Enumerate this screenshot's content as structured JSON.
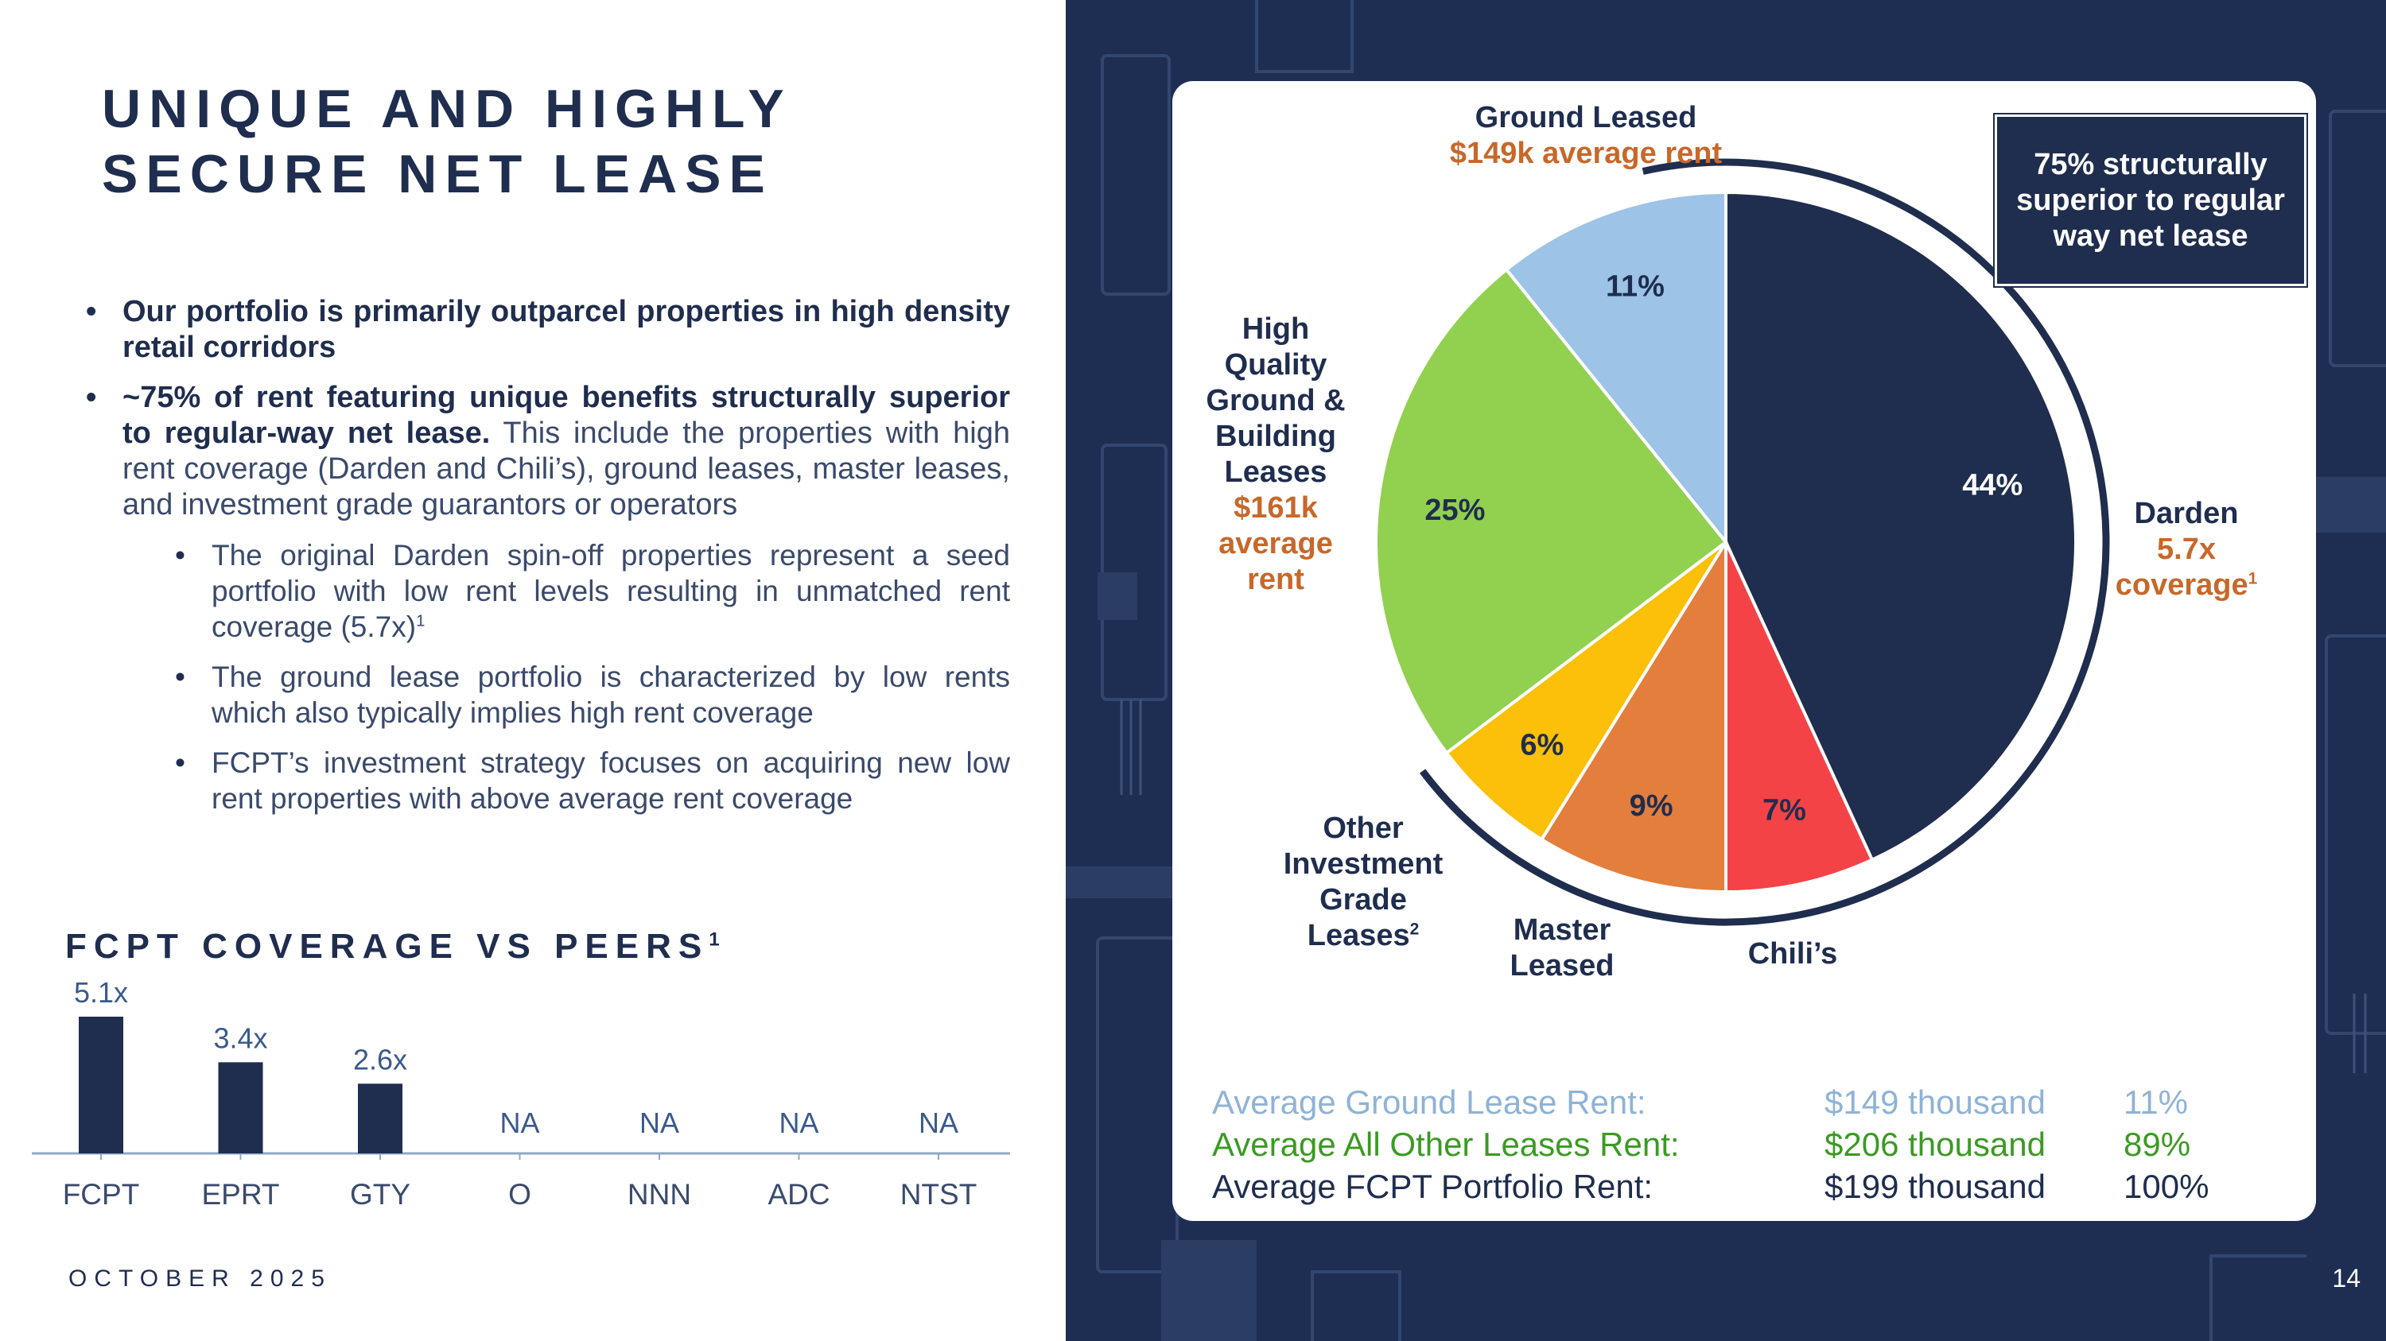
{
  "slide": {
    "title": "UNIQUE AND HIGHLY\nSECURE NET LEASE",
    "date": "OCTOBER 2025",
    "page_number": "14"
  },
  "bullets": [
    {
      "bold": "Our portfolio is primarily outparcel properties in high density retail corridors",
      "text": ""
    },
    {
      "bold": "~75% of rent featuring unique benefits structurally superior to regular-way net lease.",
      "text": " This include the properties with high rent coverage (Darden and Chili’s), ground leases, master leases, and investment grade guarantors or operators"
    }
  ],
  "sub_bullets": [
    {
      "text": "The original Darden spin-off properties represent a seed portfolio with low rent levels resulting in unmatched rent coverage (5.7x)",
      "sup": "1"
    },
    {
      "text": "The ground lease portfolio is characterized by low rents which also typically implies high rent coverage",
      "sup": ""
    },
    {
      "text": "FCPT’s investment strategy focuses on acquiring new low rent properties with above average rent coverage",
      "sup": ""
    }
  ],
  "coverage_title": "FCPT COVERAGE VS PEERS",
  "coverage_title_sup": "1",
  "callout_text": "75% structurally superior to regular way net lease",
  "pie_labels": {
    "ground_leased": {
      "name": "Ground Leased",
      "detail": "$149k average rent"
    },
    "high_quality": {
      "name": "High Quality Ground & Building Leases",
      "detail": "$161k average rent"
    },
    "darden": {
      "name": "Darden",
      "detail": "5.7x coverage",
      "sup": "1"
    },
    "other_ig": {
      "name": "Other Investment Grade Leases",
      "sup": "2"
    },
    "master": {
      "name": "Master Leased"
    },
    "chilis": {
      "name": "Chili’s"
    }
  },
  "rent_table": [
    {
      "label": "Average Ground Lease Rent:",
      "value": "$149 thousand",
      "pct": "11%",
      "color": "#8fb3d6"
    },
    {
      "label": "Average All Other Leases Rent:",
      "value": "$206 thousand",
      "pct": "89%",
      "color": "#3b9a23"
    },
    {
      "label": "Average FCPT Portfolio Rent:",
      "value": "$199 thousand",
      "pct": "100%",
      "color": "#1f2d4e"
    }
  ],
  "chart_data": [
    {
      "type": "bar",
      "title": "FCPT COVERAGE VS PEERS",
      "categories": [
        "FCPT",
        "EPRT",
        "GTY",
        "O",
        "NNN",
        "ADC",
        "NTST"
      ],
      "values": [
        5.1,
        3.4,
        2.6,
        null,
        null,
        null,
        null
      ],
      "value_labels": [
        "5.1x",
        "3.4x",
        "2.6x",
        "NA",
        "NA",
        "NA",
        "NA"
      ],
      "ylim": [
        0,
        5.1
      ],
      "color": "#1f2d4e",
      "grid": false
    },
    {
      "type": "pie",
      "slices": [
        {
          "name": "Darden",
          "value": 44,
          "label": "44%",
          "color": "#1f2d4e"
        },
        {
          "name": "Chili’s",
          "value": 7,
          "label": "7%",
          "color": "#f44346"
        },
        {
          "name": "Master Leased",
          "value": 9,
          "label": "9%",
          "color": "#e37e3d"
        },
        {
          "name": "Other Investment Grade Leases",
          "value": 6,
          "label": "6%",
          "color": "#fcbf0a"
        },
        {
          "name": "High Quality Ground & Building Leases",
          "value": 25,
          "label": "25%",
          "color": "#92d050"
        },
        {
          "name": "Ground Leased",
          "value": 11,
          "label": "11%",
          "color": "#9dc3e6"
        }
      ],
      "start": "12 o'clock",
      "direction": "clockwise"
    }
  ]
}
